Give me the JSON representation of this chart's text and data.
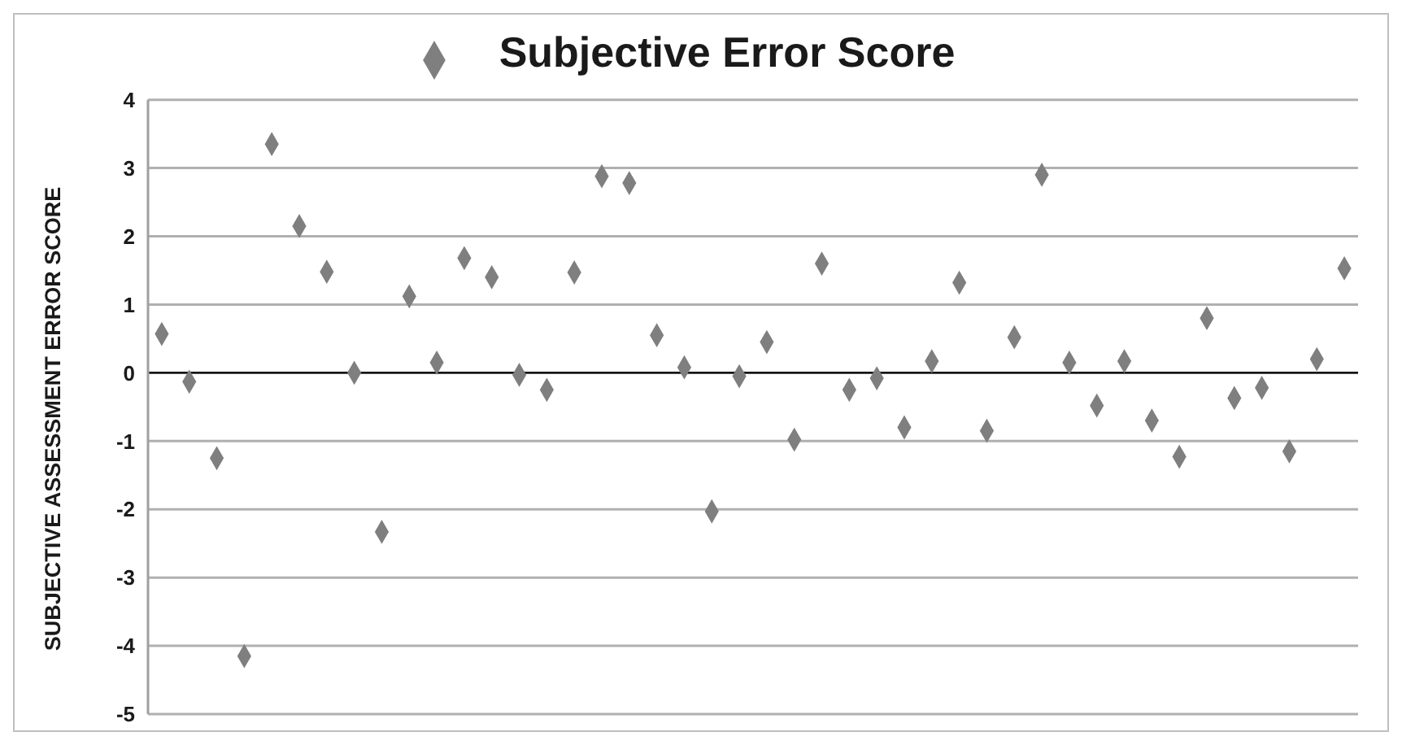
{
  "chart_data": {
    "type": "scatter",
    "ylabel": "SUBJECTIVE ASSESSMENT ERROR SCORE",
    "categories": [
      null,
      null,
      null,
      null,
      null,
      null,
      null,
      null,
      null,
      null,
      null,
      null,
      null,
      null,
      null,
      null,
      null,
      null,
      null,
      null,
      null,
      null,
      null,
      null,
      null,
      null,
      null,
      null,
      null,
      null,
      null,
      null,
      null,
      null,
      null,
      null,
      null,
      null,
      null,
      null,
      null,
      null,
      null,
      null
    ],
    "series": [
      {
        "name": "Subjective Error Score",
        "color": "#7f7f7f",
        "values": [
          0.57,
          -0.13,
          -1.25,
          -4.15,
          3.35,
          2.15,
          1.48,
          0.0,
          -2.33,
          1.12,
          0.15,
          1.68,
          1.4,
          -0.03,
          -0.25,
          1.47,
          2.88,
          2.78,
          0.55,
          0.08,
          -2.03,
          -0.05,
          0.45,
          -0.98,
          1.6,
          -0.25,
          -0.08,
          -0.8,
          0.17,
          1.32,
          -0.85,
          0.52,
          2.9,
          0.15,
          -0.48,
          0.17,
          -0.7,
          -1.23,
          0.8,
          -0.37,
          -0.22,
          -1.15,
          0.2,
          1.53
        ]
      }
    ],
    "ylim": [
      -5,
      4
    ],
    "yticks": [
      -5,
      -4,
      -3,
      -2,
      -1,
      0,
      1,
      2,
      3,
      4
    ],
    "grid": "y",
    "legend": "top",
    "marker": "diamond",
    "ref_lines": [
      {
        "axis": "y",
        "value": 0,
        "color": "#000000"
      }
    ]
  }
}
